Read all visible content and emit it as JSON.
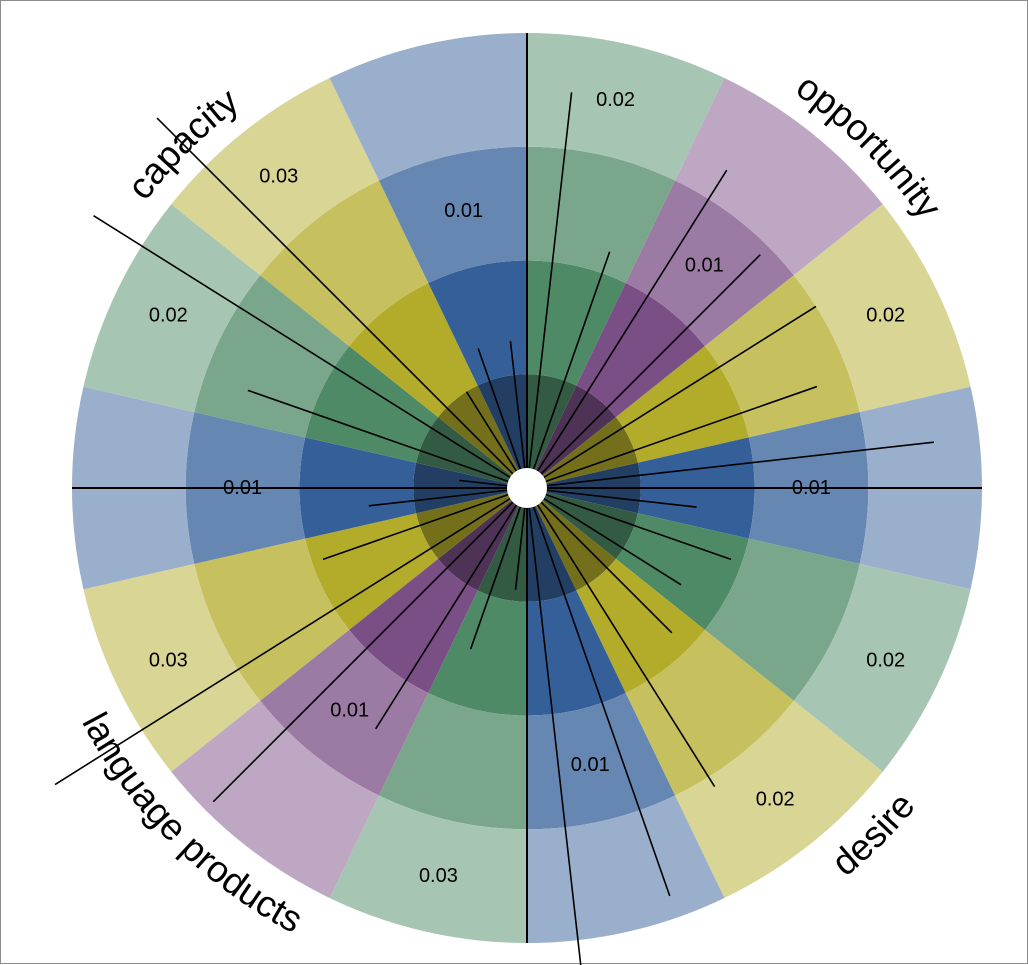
{
  "chart_data": {
    "type": "radial-bar",
    "sectors": [
      {
        "label": "0.02",
        "value": 0.02,
        "color": "#4e8a66",
        "shade_level": 2
      },
      {
        "label": "0.01",
        "value": 0.01,
        "color": "#7a4f86",
        "shade_level": 1
      },
      {
        "label": "0.02",
        "value": 0.02,
        "color": "#b3ab2a",
        "shade_level": 2
      },
      {
        "label": "0.01",
        "value": 0.01,
        "color": "#345f99",
        "shade_level": 1
      },
      {
        "label": "0.02",
        "value": 0.02,
        "color": "#4e8a66",
        "shade_level": 2
      },
      {
        "label": "0.02",
        "value": 0.02,
        "color": "#b3ab2a",
        "shade_level": 2
      },
      {
        "label": "0.01",
        "value": 0.01,
        "color": "#345f99",
        "shade_level": 1
      },
      {
        "label": "0.03",
        "value": 0.03,
        "color": "#4e8a66",
        "shade_level": 2
      },
      {
        "label": "0.01",
        "value": 0.01,
        "color": "#7a4f86",
        "shade_level": 1
      },
      {
        "label": "0.03",
        "value": 0.03,
        "color": "#b3ab2a",
        "shade_level": 2
      },
      {
        "label": "0.01",
        "value": 0.01,
        "color": "#345f99",
        "shade_level": 1
      },
      {
        "label": "0.02",
        "value": 0.02,
        "color": "#4e8a66",
        "shade_level": 2
      },
      {
        "label": "0.03",
        "value": 0.03,
        "color": "#b3ab2a",
        "shade_level": 2
      },
      {
        "label": "0.01",
        "value": 0.01,
        "color": "#345f99",
        "shade_level": 1
      }
    ],
    "indicator_lines": [
      0.035,
      0.022,
      0.033,
      0.029,
      0.03,
      0.027,
      0.036,
      0.015,
      0.019,
      0.016,
      0.018,
      0.031,
      0.038,
      0.046,
      0.009,
      0.015,
      0.025,
      0.039,
      0.049,
      0.019,
      0.014,
      0.006,
      0.026,
      0.045,
      0.046,
      0.01,
      0.013,
      0.013
    ],
    "quadrants": [
      {
        "label": "opportunity"
      },
      {
        "label": "desire"
      },
      {
        "label": "language products"
      },
      {
        "label": "capacity"
      }
    ],
    "rings": 4,
    "value_max": 0.04
  }
}
